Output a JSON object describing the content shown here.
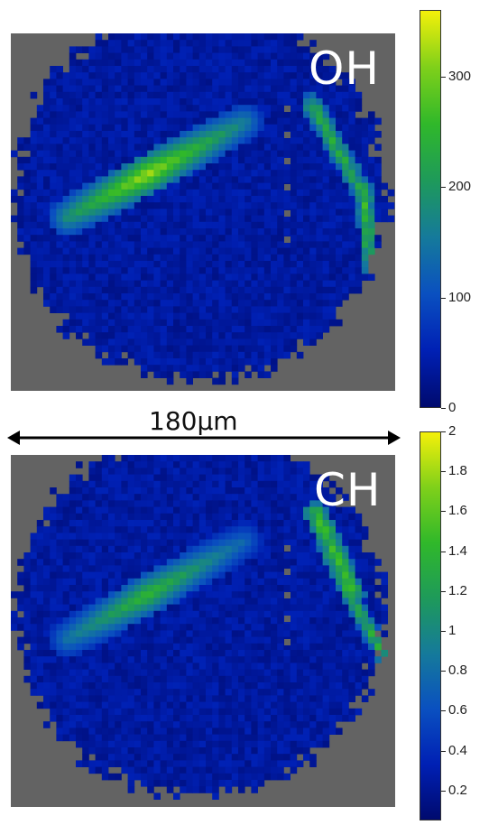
{
  "maps": [
    {
      "label": "OH",
      "colorbar": {
        "ticks": [
          "0",
          "100",
          "200",
          "300"
        ],
        "tick_values": [
          0,
          100,
          200,
          300
        ],
        "min": 0,
        "max": 360
      }
    },
    {
      "label": "CH",
      "colorbar": {
        "ticks": [
          "0.2",
          "0.4",
          "0.6",
          "0.8",
          "1",
          "1.2",
          "1.4",
          "1.6",
          "1.8",
          "2"
        ],
        "tick_values": [
          0.2,
          0.4,
          0.6,
          0.8,
          1.0,
          1.2,
          1.4,
          1.6,
          1.8,
          2.0
        ],
        "min": 0.05,
        "max": 2.0
      }
    }
  ],
  "scale_bar": {
    "text": "180µm"
  },
  "colors": {
    "background_gray": "#636363",
    "colormap": [
      "#000a6e",
      "#0020b4",
      "#0a50c0",
      "#157a9b",
      "#1e9a5a",
      "#30b82a",
      "#7fd01a",
      "#f4f00a"
    ]
  }
}
